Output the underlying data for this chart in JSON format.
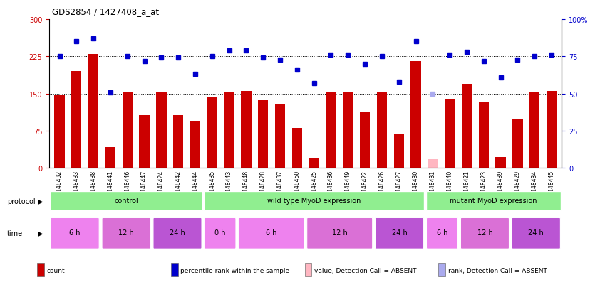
{
  "title": "GDS2854 / 1427408_a_at",
  "samples": [
    "GSM148432",
    "GSM148433",
    "GSM148438",
    "GSM148441",
    "GSM148446",
    "GSM148447",
    "GSM148424",
    "GSM148442",
    "GSM148444",
    "GSM148435",
    "GSM148443",
    "GSM148448",
    "GSM148428",
    "GSM148437",
    "GSM148450",
    "GSM148425",
    "GSM148436",
    "GSM148449",
    "GSM148422",
    "GSM148426",
    "GSM148427",
    "GSM148430",
    "GSM148431",
    "GSM148440",
    "GSM148421",
    "GSM148423",
    "GSM148439",
    "GSM148429",
    "GSM148434",
    "GSM148445"
  ],
  "bar_values": [
    148,
    195,
    230,
    42,
    152,
    107,
    153,
    107,
    93,
    143,
    152,
    155,
    137,
    128,
    80,
    20,
    153,
    153,
    112,
    153,
    68,
    215,
    18,
    140,
    170,
    133,
    22,
    99,
    152,
    155
  ],
  "bar_absent": [
    false,
    false,
    false,
    false,
    false,
    false,
    false,
    false,
    false,
    false,
    false,
    false,
    false,
    false,
    false,
    false,
    false,
    false,
    false,
    false,
    false,
    false,
    true,
    false,
    false,
    false,
    false,
    false,
    false,
    false
  ],
  "rank_values": [
    75,
    85,
    87,
    51,
    75,
    72,
    74,
    74,
    63,
    75,
    79,
    79,
    74,
    73,
    66,
    57,
    76,
    76,
    70,
    75,
    58,
    85,
    50,
    76,
    78,
    72,
    61,
    73,
    75,
    76
  ],
  "rank_absent": [
    false,
    false,
    false,
    false,
    false,
    false,
    false,
    false,
    false,
    false,
    false,
    false,
    false,
    false,
    false,
    false,
    false,
    false,
    false,
    false,
    false,
    false,
    true,
    false,
    false,
    false,
    false,
    false,
    false,
    false
  ],
  "protocol_groups": [
    {
      "label": "control",
      "start": 0,
      "end": 9,
      "color": "#90ee90"
    },
    {
      "label": "wild type MyoD expression",
      "start": 9,
      "end": 22,
      "color": "#90ee90"
    },
    {
      "label": "mutant MyoD expression",
      "start": 22,
      "end": 30,
      "color": "#90ee90"
    }
  ],
  "time_groups": [
    {
      "label": "6 h",
      "start": 0,
      "end": 3,
      "color": "#ee82ee"
    },
    {
      "label": "12 h",
      "start": 3,
      "end": 6,
      "color": "#da70d6"
    },
    {
      "label": "24 h",
      "start": 6,
      "end": 9,
      "color": "#ba55d3"
    },
    {
      "label": "0 h",
      "start": 9,
      "end": 11,
      "color": "#ee82ee"
    },
    {
      "label": "6 h",
      "start": 11,
      "end": 15,
      "color": "#ee82ee"
    },
    {
      "label": "12 h",
      "start": 15,
      "end": 19,
      "color": "#da70d6"
    },
    {
      "label": "24 h",
      "start": 19,
      "end": 22,
      "color": "#ba55d3"
    },
    {
      "label": "6 h",
      "start": 22,
      "end": 24,
      "color": "#ee82ee"
    },
    {
      "label": "12 h",
      "start": 24,
      "end": 27,
      "color": "#da70d6"
    },
    {
      "label": "24 h",
      "start": 27,
      "end": 30,
      "color": "#ba55d3"
    }
  ],
  "bar_color": "#cc0000",
  "bar_absent_color": "#ffb6c1",
  "rank_color": "#0000cc",
  "rank_absent_color": "#aaaaee",
  "ymax": 300,
  "yticks_left": [
    0,
    75,
    150,
    225,
    300
  ],
  "yticks_right": [
    0,
    25,
    50,
    75,
    100
  ],
  "legend": [
    {
      "color": "#cc0000",
      "label": "count"
    },
    {
      "color": "#0000cc",
      "label": "percentile rank within the sample"
    },
    {
      "color": "#ffb6c1",
      "label": "value, Detection Call = ABSENT"
    },
    {
      "color": "#aaaaee",
      "label": "rank, Detection Call = ABSENT"
    }
  ]
}
